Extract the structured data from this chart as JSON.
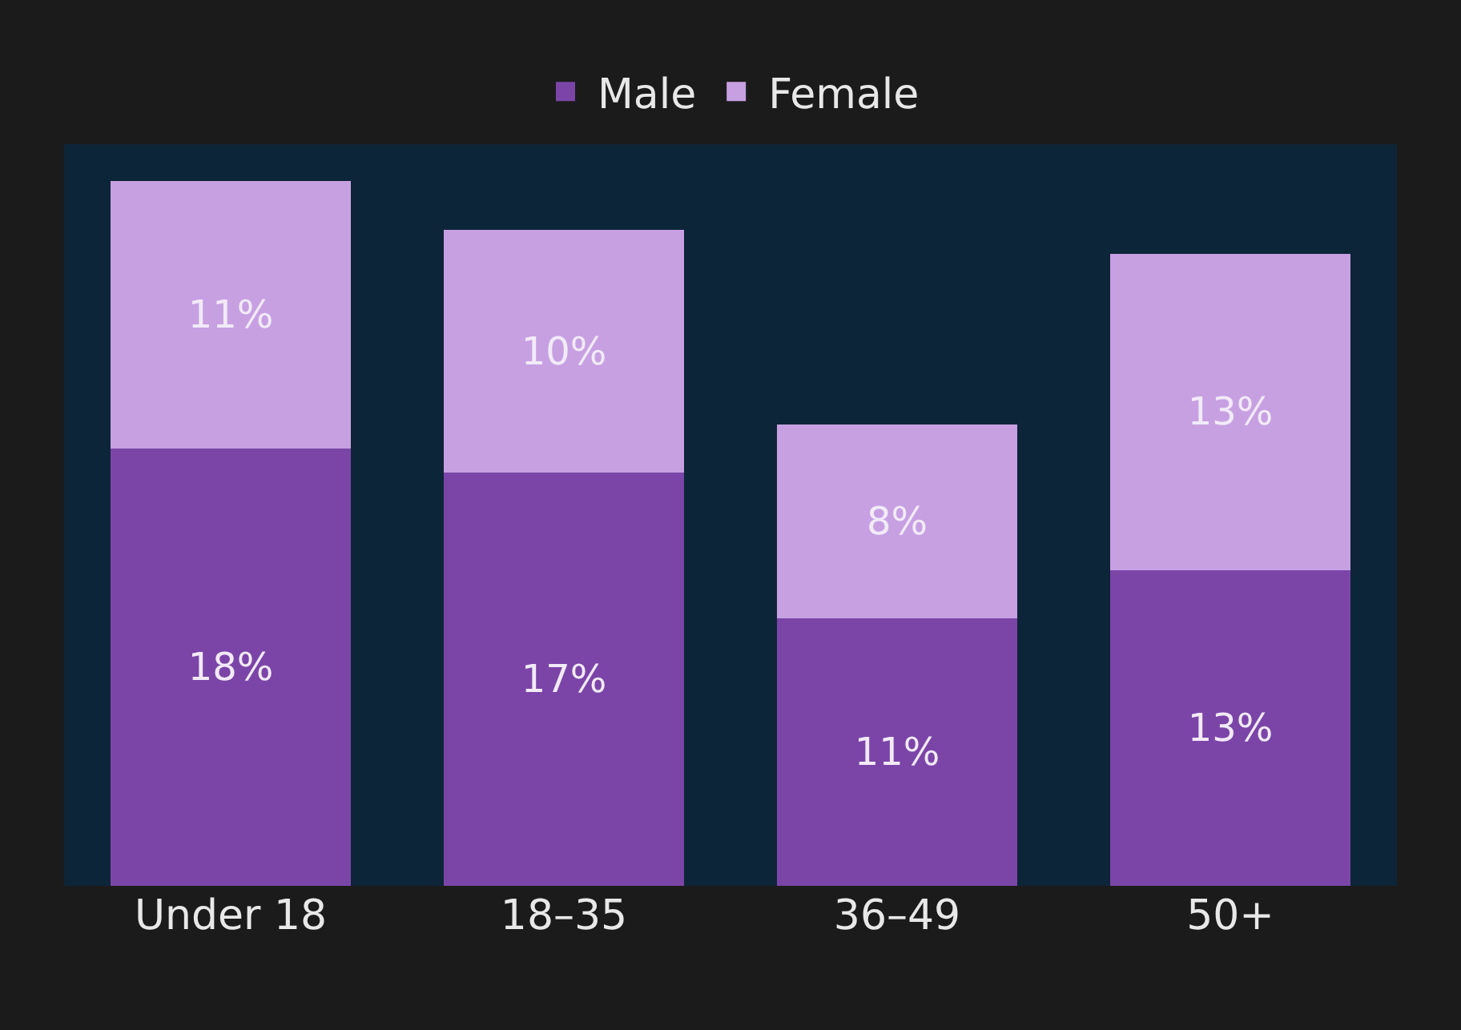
{
  "chart_data": {
    "type": "bar",
    "stacked": true,
    "legend": "top",
    "grid": false,
    "categories": [
      "Under 18",
      "18–35",
      "36–49",
      "50+"
    ],
    "series": [
      {
        "name": "Male",
        "color": "#7b45a8",
        "values": [
          18,
          17,
          11,
          13
        ],
        "value_labels": [
          "18%",
          "17%",
          "11%",
          "13%"
        ]
      },
      {
        "name": "Female",
        "color": "#c7a0e2",
        "values": [
          11,
          10,
          8,
          13
        ],
        "value_labels": [
          "11%",
          "10%",
          "8%",
          "13%"
        ]
      }
    ]
  }
}
